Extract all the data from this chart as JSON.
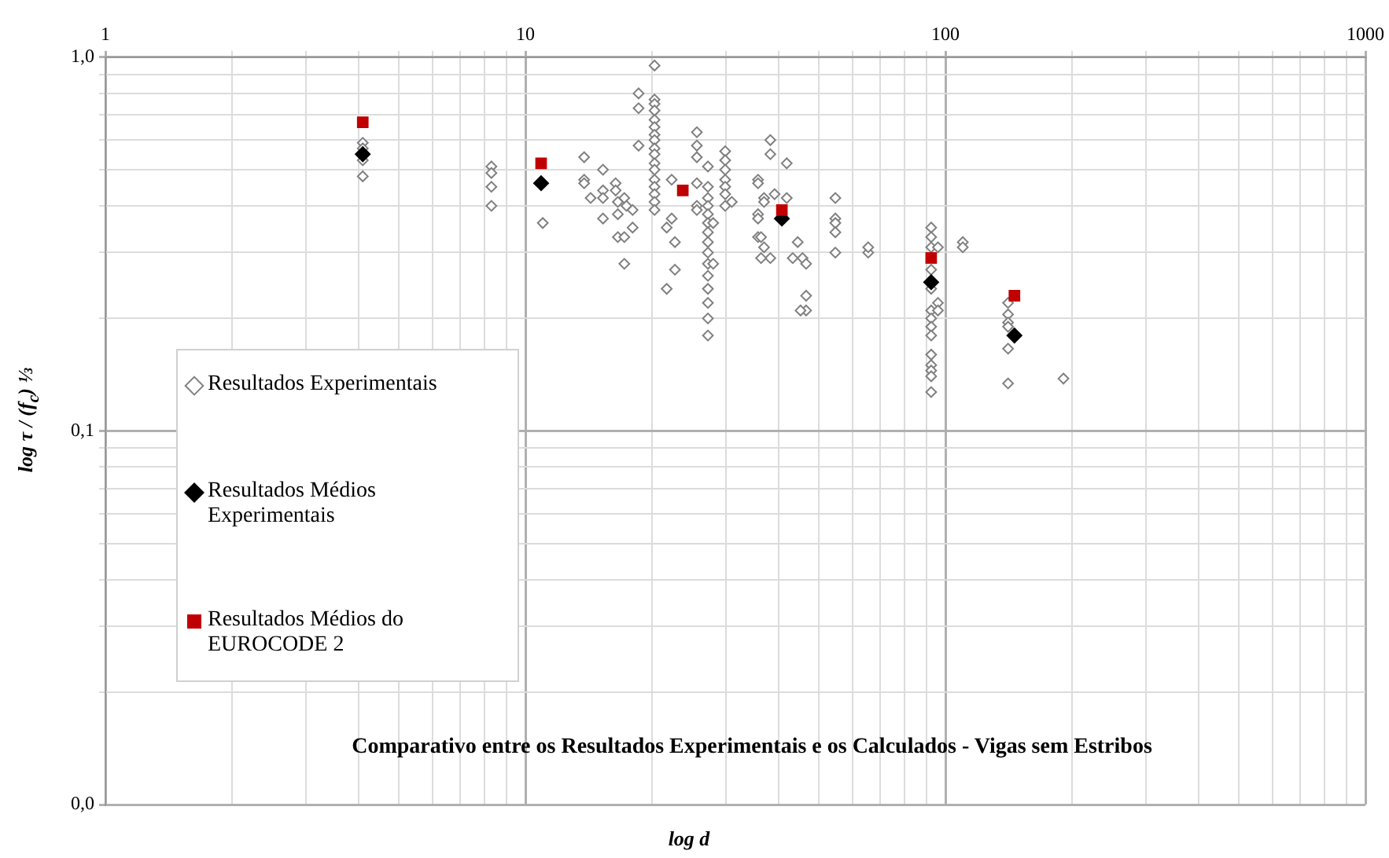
{
  "chart_data": {
    "type": "scatter",
    "title": "Comparativo entre os Resultados Experimentais e os Calculados - Vigas sem Estribos",
    "xlabel": "log d",
    "ylabel": "log τ / (f$_{c}$) ⅓",
    "log": "xy",
    "grid": true,
    "legend": "left",
    "xlim": [
      1,
      1000
    ],
    "ylim": [
      0.01,
      1
    ],
    "xticks": [
      1,
      {
        "value": 2,
        "label": null
      },
      {
        "value": 3,
        "label": null
      },
      {
        "value": 4,
        "label": null
      },
      {
        "value": 5,
        "label": null
      },
      {
        "value": 6,
        "label": null
      },
      {
        "value": 7,
        "label": null
      },
      {
        "value": 8,
        "label": null
      },
      {
        "value": 9,
        "label": null
      },
      10,
      {
        "value": 20,
        "label": null
      },
      {
        "value": 30,
        "label": null
      },
      {
        "value": 40,
        "label": null
      },
      {
        "value": 50,
        "label": null
      },
      {
        "value": 60,
        "label": null
      },
      {
        "value": 70,
        "label": null
      },
      {
        "value": 80,
        "label": null
      },
      {
        "value": 90,
        "label": null
      },
      100,
      {
        "value": 200,
        "label": null
      },
      {
        "value": 300,
        "label": null
      },
      {
        "value": 400,
        "label": null
      },
      {
        "value": 500,
        "label": null
      },
      {
        "value": 600,
        "label": null
      },
      {
        "value": 700,
        "label": null
      },
      {
        "value": 800,
        "label": null
      },
      {
        "value": 900,
        "label": null
      },
      1000
    ],
    "yticks": [
      {
        "value": 0.01,
        "label": "0,0"
      },
      {
        "value": 0.02,
        "label": null
      },
      {
        "value": 0.03,
        "label": null
      },
      {
        "value": 0.04,
        "label": null
      },
      {
        "value": 0.05,
        "label": null
      },
      {
        "value": 0.06,
        "label": null
      },
      {
        "value": 0.07,
        "label": null
      },
      {
        "value": 0.08,
        "label": null
      },
      {
        "value": 0.09,
        "label": null
      },
      {
        "value": 0.1,
        "label": "0,1"
      },
      {
        "value": 0.2,
        "label": null
      },
      {
        "value": 0.3,
        "label": null
      },
      {
        "value": 0.4,
        "label": null
      },
      {
        "value": 0.5,
        "label": null
      },
      {
        "value": 0.6,
        "label": null
      },
      {
        "value": 0.7,
        "label": null
      },
      {
        "value": 0.8,
        "label": null
      },
      {
        "value": 0.9,
        "label": null
      },
      {
        "value": 1,
        "label": "1,0"
      }
    ],
    "series": [
      {
        "name": "Resultados Experimentais",
        "color": "#808080",
        "marker": "diamond",
        "x": [
          4.1,
          4.1,
          4.1,
          4.1,
          8.3,
          8.3,
          8.3,
          8.3,
          11.0,
          13.8,
          13.8,
          13.8,
          14.3,
          15.3,
          15.3,
          15.3,
          15.3,
          16.4,
          16.4,
          16.6,
          16.6,
          16.6,
          17.2,
          17.2,
          17.2,
          17.4,
          18.0,
          18.0,
          18.6,
          18.6,
          18.6,
          20.3,
          20.3,
          20.3,
          20.3,
          20.3,
          20.3,
          20.3,
          20.3,
          20.3,
          20.3,
          20.3,
          20.3,
          20.3,
          20.3,
          20.3,
          20.3,
          20.3,
          21.7,
          21.7,
          22.3,
          22.3,
          22.7,
          22.7,
          25.6,
          25.6,
          25.6,
          25.6,
          25.6,
          25.6,
          27.2,
          27.2,
          27.2,
          27.2,
          27.2,
          27.2,
          27.2,
          27.2,
          27.2,
          27.2,
          27.2,
          27.2,
          27.2,
          27.2,
          27.2,
          28,
          28,
          29.9,
          29.9,
          29.9,
          29.9,
          29.9,
          29.9,
          29.9,
          31,
          35.8,
          35.8,
          35.8,
          35.8,
          35.8,
          38.3,
          38.3,
          38.3,
          37,
          37,
          37,
          36.4,
          36.4,
          39.2,
          41.9,
          41.9,
          44.5,
          43.3,
          45.7,
          46.6,
          46.6,
          46.6,
          45.2,
          54.7,
          54.7,
          54.7,
          54.7,
          54.7,
          65.5,
          65.5,
          110,
          110,
          92.5,
          92.5,
          92.5,
          92.5,
          92.5,
          92.5,
          92.5,
          92.5,
          92.5,
          92.5,
          92.5,
          92.5,
          92.5,
          92.5,
          96,
          96,
          96,
          141,
          141,
          141,
          141,
          141,
          141,
          191
        ],
        "values": [
          0.59,
          0.57,
          0.53,
          0.48,
          0.51,
          0.49,
          0.45,
          0.4,
          0.36,
          0.54,
          0.47,
          0.46,
          0.42,
          0.5,
          0.44,
          0.42,
          0.37,
          0.46,
          0.44,
          0.41,
          0.38,
          0.33,
          0.42,
          0.33,
          0.28,
          0.4,
          0.39,
          0.35,
          0.8,
          0.73,
          0.58,
          0.95,
          0.77,
          0.75,
          0.72,
          0.68,
          0.65,
          0.62,
          0.6,
          0.57,
          0.55,
          0.52,
          0.5,
          0.47,
          0.45,
          0.43,
          0.41,
          0.39,
          0.35,
          0.24,
          0.37,
          0.47,
          0.32,
          0.27,
          0.63,
          0.58,
          0.54,
          0.46,
          0.4,
          0.39,
          0.51,
          0.45,
          0.42,
          0.4,
          0.38,
          0.36,
          0.34,
          0.32,
          0.3,
          0.28,
          0.26,
          0.24,
          0.22,
          0.2,
          0.18,
          0.36,
          0.28,
          0.56,
          0.53,
          0.5,
          0.47,
          0.45,
          0.43,
          0.4,
          0.41,
          0.47,
          0.46,
          0.38,
          0.37,
          0.33,
          0.6,
          0.55,
          0.29,
          0.42,
          0.41,
          0.31,
          0.33,
          0.29,
          0.43,
          0.52,
          0.42,
          0.32,
          0.29,
          0.29,
          0.28,
          0.23,
          0.21,
          0.21,
          0.42,
          0.37,
          0.36,
          0.34,
          0.3,
          0.3,
          0.31,
          0.32,
          0.31,
          0.35,
          0.33,
          0.31,
          0.27,
          0.24,
          0.21,
          0.2,
          0.19,
          0.18,
          0.16,
          0.15,
          0.145,
          0.14,
          0.127,
          0.31,
          0.22,
          0.21,
          0.22,
          0.205,
          0.195,
          0.19,
          0.166,
          0.134,
          0.138
        ]
      },
      {
        "name": "Resultados Médios Experimentais",
        "color": "#000000",
        "marker": "diamond",
        "x": [
          4.1,
          10.9,
          23.7,
          40.8,
          92.5,
          146
        ],
        "values": [
          0.55,
          0.46,
          null,
          0.37,
          0.25,
          0.18
        ]
      },
      {
        "name": "Resultados Médios do EUROCODE 2",
        "color": "#c00000",
        "marker": "square",
        "x": [
          4.1,
          10.9,
          23.7,
          40.8,
          92.5,
          146
        ],
        "values": [
          0.67,
          0.52,
          0.44,
          0.39,
          0.29,
          0.23
        ]
      }
    ]
  }
}
